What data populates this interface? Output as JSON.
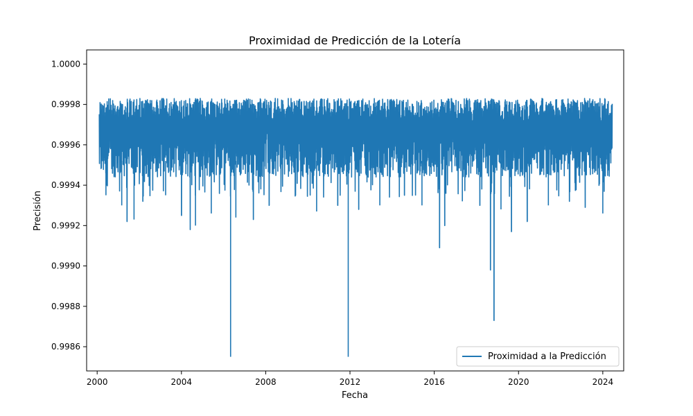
{
  "chart_data": {
    "type": "line",
    "title": "Proximidad de Predicción de la Lotería",
    "xlabel": "Fecha",
    "ylabel": "Precisión",
    "xlim": [
      "2000-01-01",
      "2024-06-30"
    ],
    "ylim": [
      0.99848,
      1.00007
    ],
    "x_ticks": [
      "2000",
      "2004",
      "2008",
      "2012",
      "2016",
      "2020",
      "2024"
    ],
    "y_ticks": [
      "0.9986",
      "0.9988",
      "0.9990",
      "0.9992",
      "0.9994",
      "0.9996",
      "0.9998",
      "1.0000"
    ],
    "grid": false,
    "legend_position": "lower-right",
    "series": [
      {
        "name": "Proximidad a la Predicción",
        "color": "#1f77b4",
        "envelope_max": 0.99983,
        "envelope_min_typical": 0.99942,
        "notable_dips": [
          {
            "x": "2000-06-01",
            "y": 0.99935
          },
          {
            "x": "2001-03-01",
            "y": 0.9993
          },
          {
            "x": "2001-06-01",
            "y": 0.99922
          },
          {
            "x": "2001-10-01",
            "y": 0.99923
          },
          {
            "x": "2002-03-01",
            "y": 0.99932
          },
          {
            "x": "2003-04-01",
            "y": 0.99935
          },
          {
            "x": "2004-01-01",
            "y": 0.99925
          },
          {
            "x": "2004-06-01",
            "y": 0.99918
          },
          {
            "x": "2004-09-01",
            "y": 0.9992
          },
          {
            "x": "2005-06-01",
            "y": 0.99926
          },
          {
            "x": "2006-05-01",
            "y": 0.99855
          },
          {
            "x": "2006-08-01",
            "y": 0.99924
          },
          {
            "x": "2007-06-01",
            "y": 0.99923
          },
          {
            "x": "2008-03-01",
            "y": 0.9993
          },
          {
            "x": "2009-06-01",
            "y": 0.99935
          },
          {
            "x": "2010-06-01",
            "y": 0.99927
          },
          {
            "x": "2011-06-01",
            "y": 0.9993
          },
          {
            "x": "2011-12-01",
            "y": 0.99855
          },
          {
            "x": "2012-06-01",
            "y": 0.99928
          },
          {
            "x": "2013-06-01",
            "y": 0.9993
          },
          {
            "x": "2014-08-01",
            "y": 0.99935
          },
          {
            "x": "2015-06-01",
            "y": 0.9993
          },
          {
            "x": "2016-04-01",
            "y": 0.99909
          },
          {
            "x": "2016-07-01",
            "y": 0.9992
          },
          {
            "x": "2017-05-01",
            "y": 0.99932
          },
          {
            "x": "2018-03-01",
            "y": 0.9993
          },
          {
            "x": "2018-09-01",
            "y": 0.99898
          },
          {
            "x": "2018-11-01",
            "y": 0.99873
          },
          {
            "x": "2019-03-01",
            "y": 0.99928
          },
          {
            "x": "2019-09-01",
            "y": 0.99917
          },
          {
            "x": "2020-06-01",
            "y": 0.99922
          },
          {
            "x": "2021-06-01",
            "y": 0.9993
          },
          {
            "x": "2022-06-01",
            "y": 0.99932
          },
          {
            "x": "2023-03-01",
            "y": 0.99929
          },
          {
            "x": "2024-01-01",
            "y": 0.99926
          }
        ]
      }
    ]
  }
}
